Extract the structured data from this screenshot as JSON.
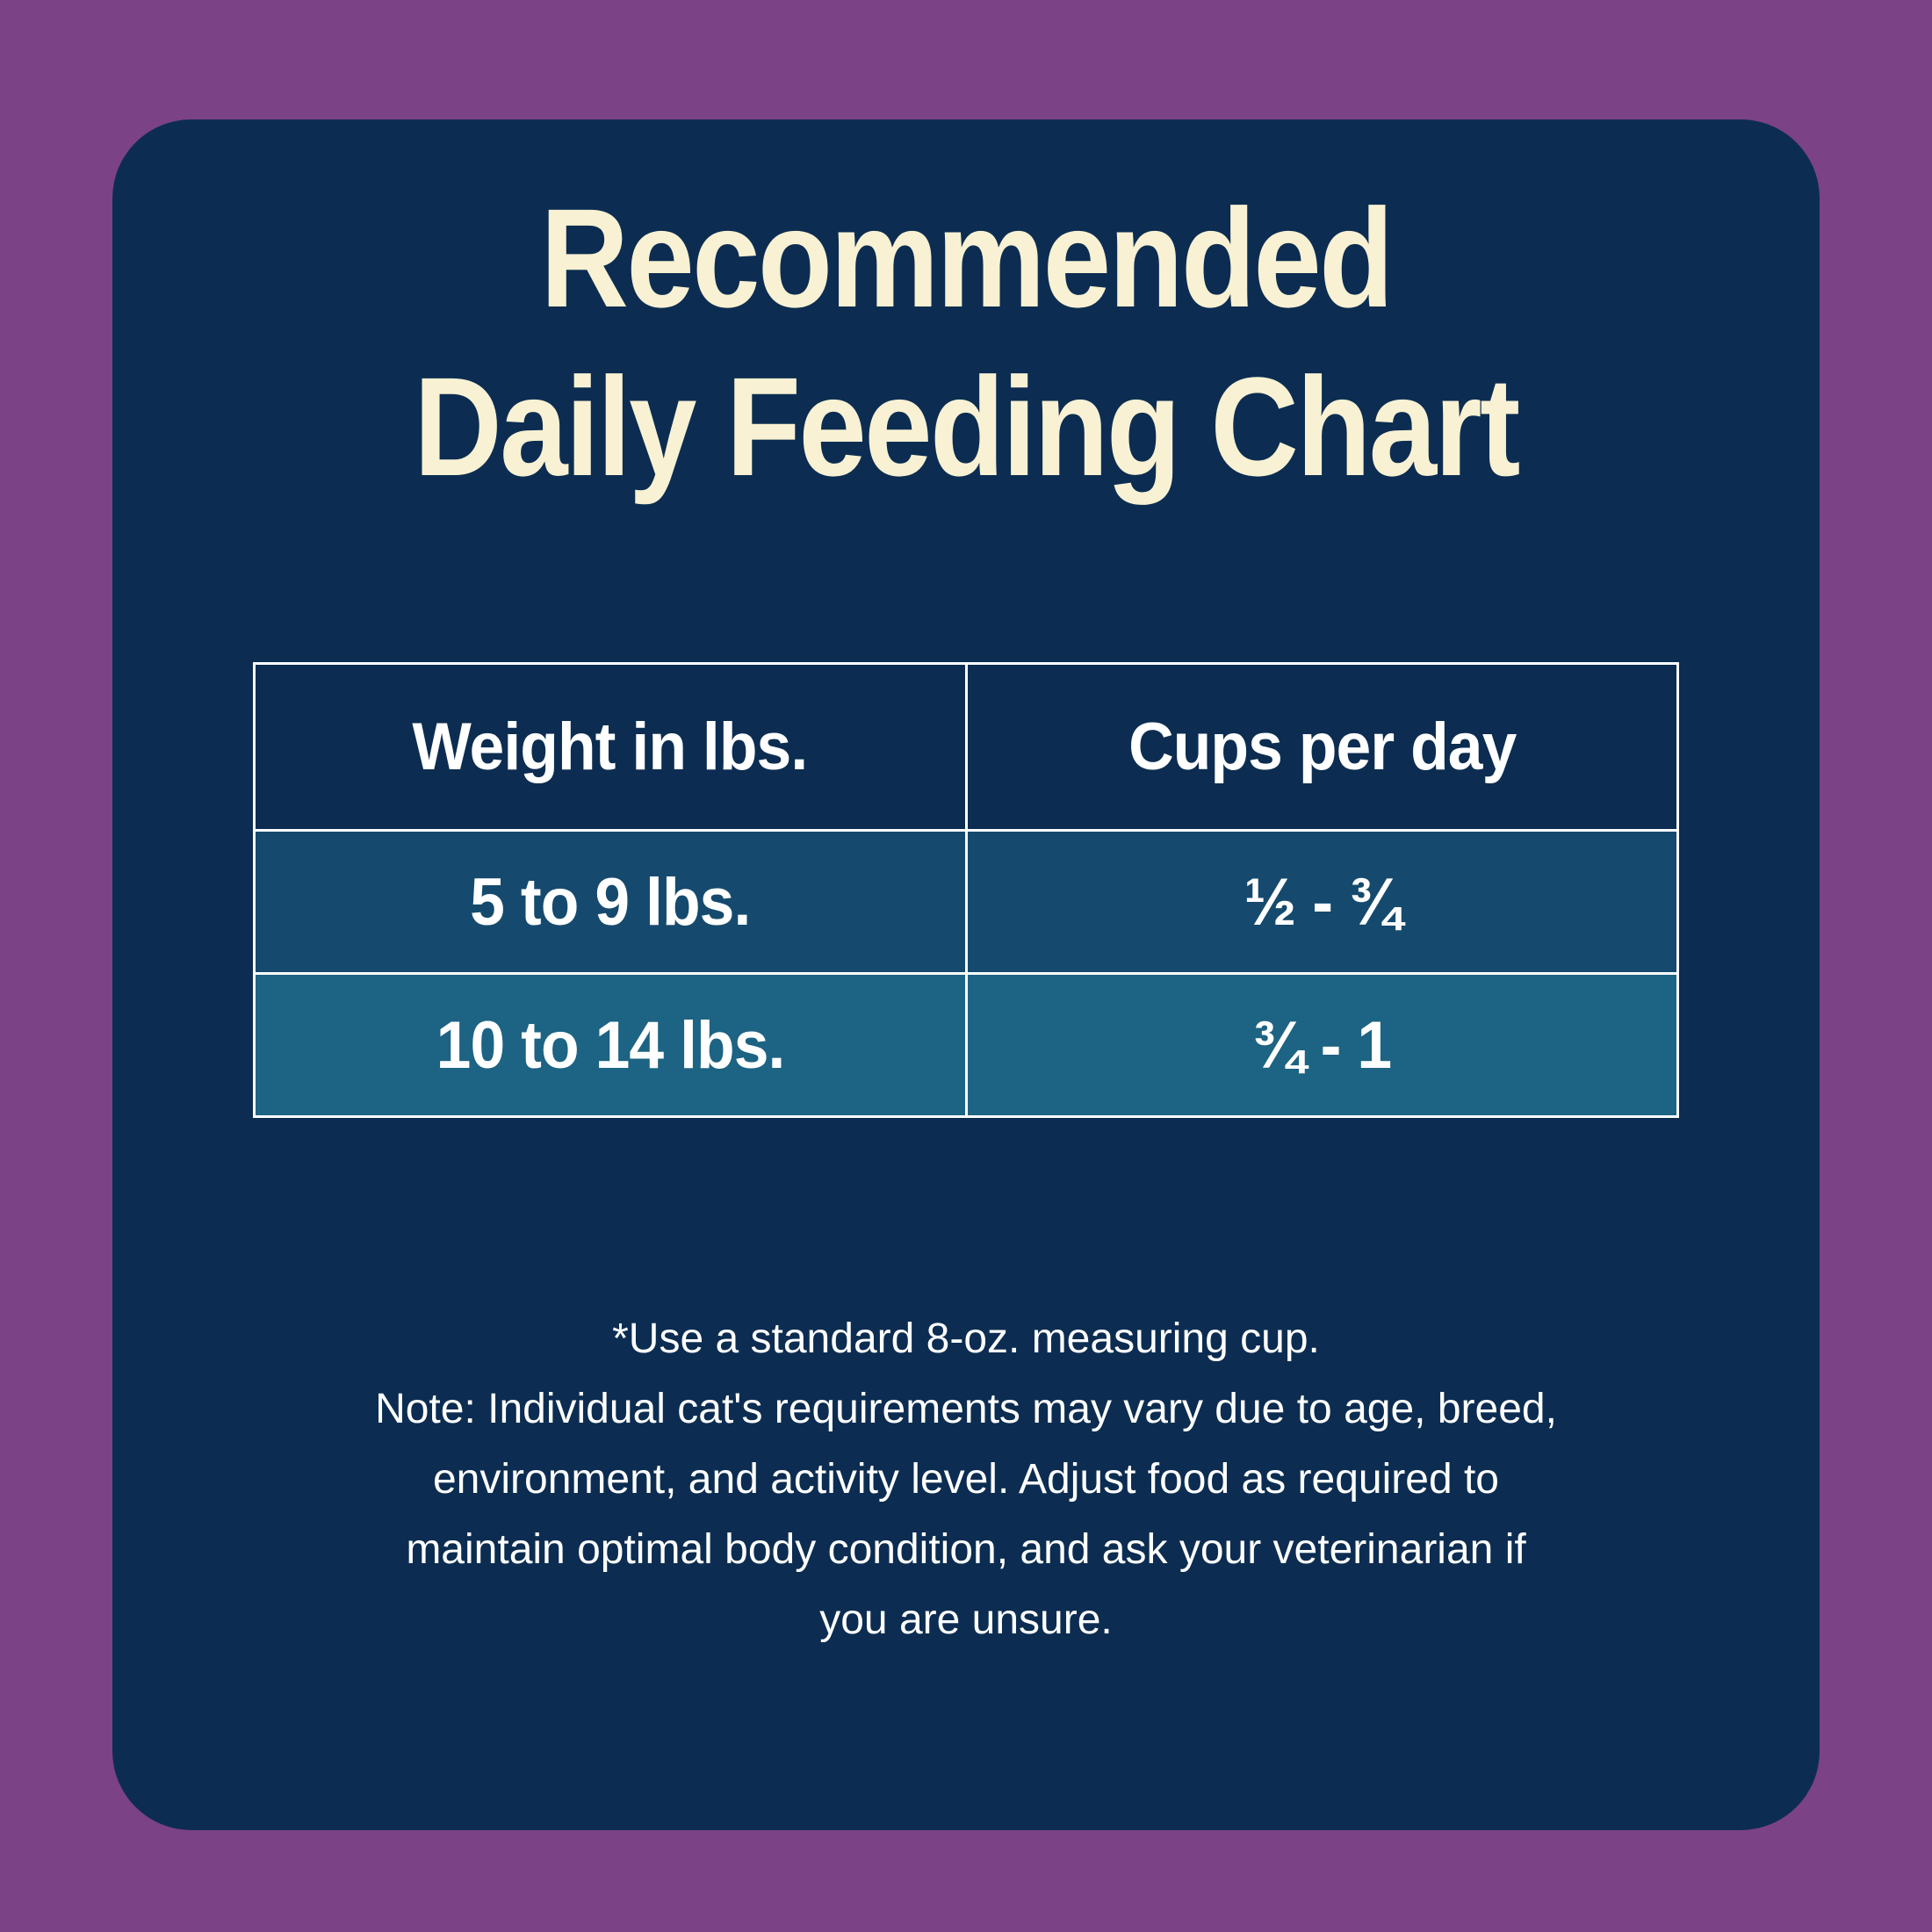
{
  "title": {
    "lines": [
      "Recommended",
      "Daily Feeding Chart"
    ]
  },
  "table": {
    "headers": [
      "Weight in lbs.",
      "Cups per day"
    ],
    "rows": [
      {
        "weight": "5 to 9 lbs.",
        "cups": "½ - ¾"
      },
      {
        "weight": "10 to 14 lbs.",
        "cups": "¾ - 1"
      }
    ]
  },
  "note": {
    "text": "*Use a standard 8-oz. measuring cup.\nNote: Individual cat's requirements may vary due to age, breed,\nenvironment, and activity level. Adjust food as required to\nmaintain optimal body condition, and ask your veterinarian if\nyou are unsure."
  },
  "colors": {
    "purple": "#7B4285",
    "navy": "#0C2D51",
    "row1": "#154A6E",
    "row2": "#1D6383",
    "cream": "#F8F1D3",
    "white": "#FFFFFF"
  }
}
